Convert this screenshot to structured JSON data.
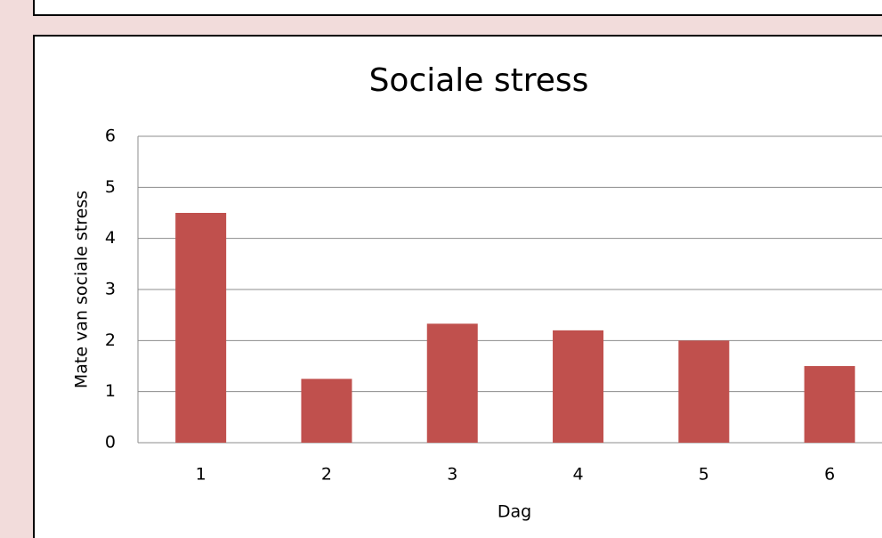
{
  "chart_data": {
    "type": "bar",
    "title": "Sociale stress",
    "x_label": "Dag",
    "y_label": "Mate van sociale stress",
    "categories": [
      "1",
      "2",
      "3",
      "4",
      "5",
      "6"
    ],
    "values": [
      4.5,
      1.25,
      2.33,
      2.2,
      2,
      1.5
    ],
    "color": "#c0504d",
    "ylim": [
      0,
      6
    ],
    "yticks": [
      0,
      1,
      2,
      3,
      4,
      5,
      6
    ],
    "grid": true
  }
}
